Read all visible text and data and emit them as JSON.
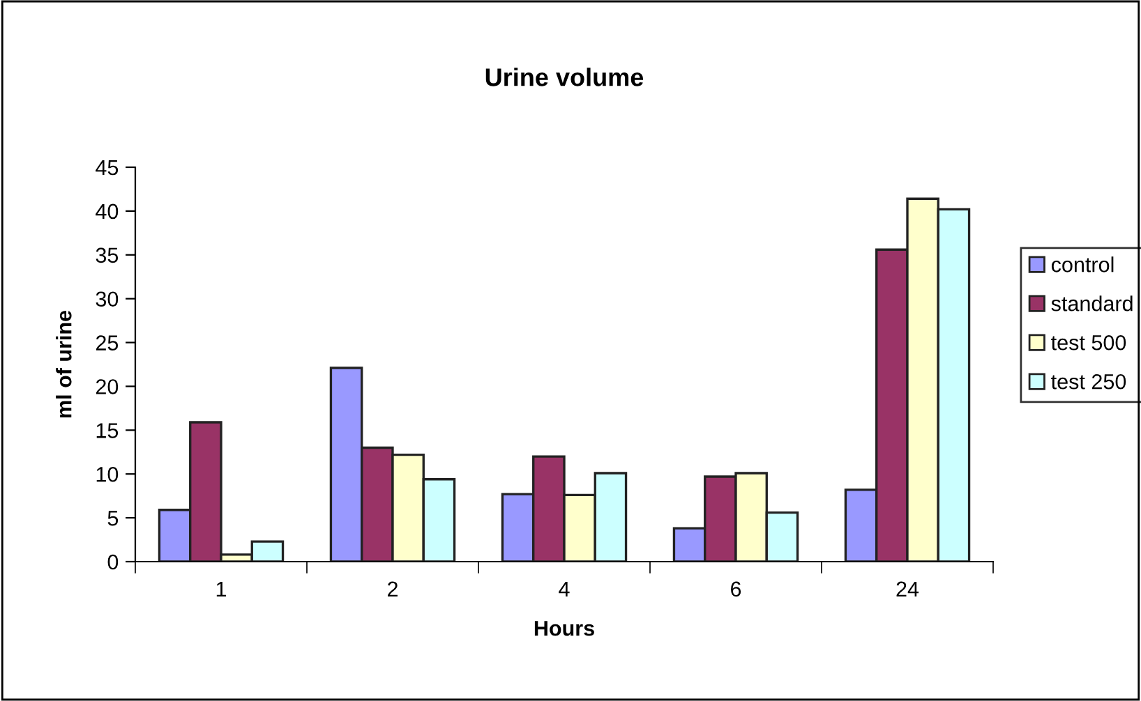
{
  "chart_data": {
    "type": "bar",
    "title": "Urine volume",
    "xlabel": "Hours",
    "ylabel": "ml of urine",
    "categories": [
      "1",
      "2",
      "4",
      "6",
      "24"
    ],
    "series": [
      {
        "name": "control",
        "color": "#9999ff",
        "values": [
          5.9,
          22.1,
          7.7,
          3.8,
          8.2
        ]
      },
      {
        "name": "standard",
        "color": "#993366",
        "values": [
          15.9,
          13.0,
          12.0,
          9.7,
          35.6
        ]
      },
      {
        "name": "test 500",
        "color": "#ffffcc",
        "values": [
          0.8,
          12.2,
          7.6,
          10.1,
          41.4
        ]
      },
      {
        "name": "test 250",
        "color": "#ccffff",
        "values": [
          2.3,
          9.4,
          10.1,
          5.6,
          40.2
        ]
      }
    ],
    "ylim": [
      0,
      45
    ],
    "yticks": [
      0,
      5,
      10,
      15,
      20,
      25,
      30,
      35,
      40,
      45
    ],
    "grid": false,
    "legend": "right"
  }
}
